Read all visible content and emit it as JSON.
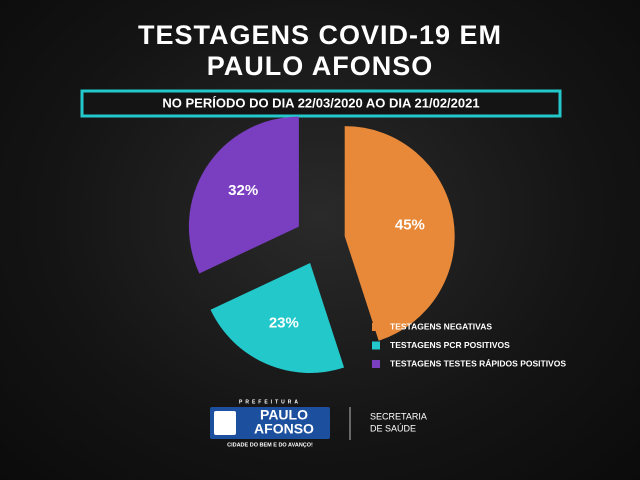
{
  "chart_data": {
    "type": "pie",
    "title": "TESTAGENS COVID-19 EM PAULO AFONSO",
    "subtitle": "NO PERÍODO DO DIA 22/03/2020 AO DIA 21/02/2021",
    "categories": [
      "TESTAGENS NEGATIVAS",
      "TESTAGENS PCR POSITIVOS",
      "TESTAGENS TESTES RÁPIDOS POSITIVOS"
    ],
    "values": [
      45,
      23,
      32
    ],
    "value_labels": [
      "45%",
      "23%",
      "32%"
    ],
    "colors": [
      "#e8893a",
      "#23c8cb",
      "#7a3fc0"
    ],
    "legend": "bottom-right"
  },
  "footer": {
    "logo_top": "PREFEITURA",
    "logo_line1": "PAULO",
    "logo_line2": "AFONSO",
    "logo_slogan": "CIDADE DO BEM E DO AVANÇO!",
    "department_line1": "SECRETARIA",
    "department_line2": "DE SAÚDE"
  }
}
